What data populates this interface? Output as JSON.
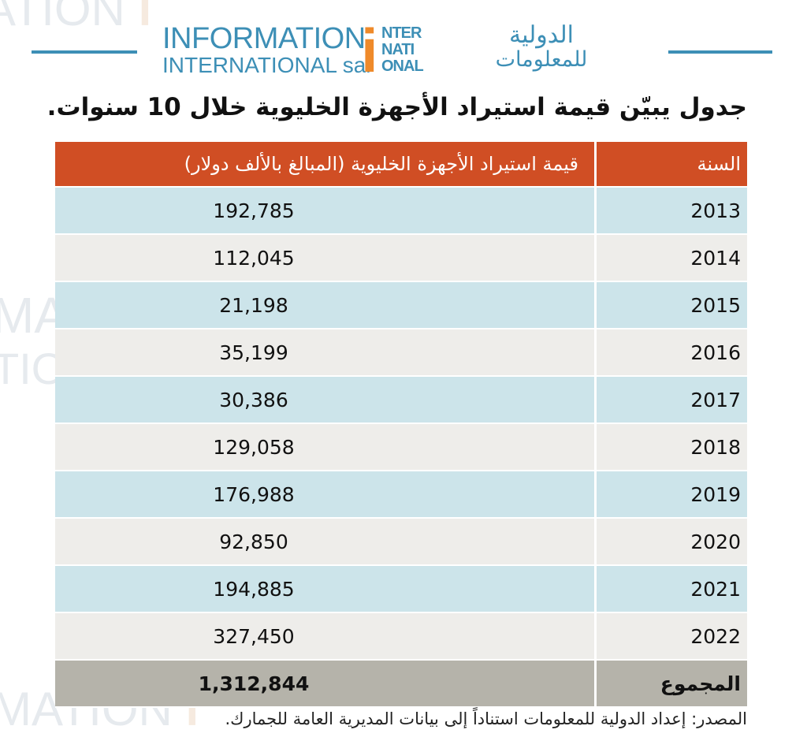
{
  "header": {
    "logo_en_line1": "INFORMATION",
    "logo_en_line2": "INTERNATIONAL sal",
    "logo_mark_letter": "i",
    "logo_mark_lines": [
      "NTER",
      "NATI",
      "ONAL"
    ],
    "logo_ar_line1": "الدولية",
    "logo_ar_line2": "للمعلومات"
  },
  "title": "جدول يبيّن قيمة استيراد الأجهزة الخليوية خلال 10 سنوات.",
  "table": {
    "headers": {
      "year": "السنة",
      "value": "قيمة استيراد الأجهزة الخليوية (المبالغ بالألف دولار)"
    },
    "rows": [
      {
        "year": "2013",
        "value": "192,785"
      },
      {
        "year": "2014",
        "value": "112,045"
      },
      {
        "year": "2015",
        "value": "21,198"
      },
      {
        "year": "2016",
        "value": "35,199"
      },
      {
        "year": "2017",
        "value": "30,386"
      },
      {
        "year": "2018",
        "value": "129,058"
      },
      {
        "year": "2019",
        "value": "176,988"
      },
      {
        "year": "2020",
        "value": "92,850"
      },
      {
        "year": "2021",
        "value": "194,885"
      },
      {
        "year": "2022",
        "value": "327,450"
      }
    ],
    "total": {
      "label": "المجموع",
      "value": "1,312,844"
    }
  },
  "source": "المصدر: إعداد الدولية للمعلومات استناداً إلى بيانات المديرية العامة للجمارك.",
  "colors": {
    "brand_blue": "#3d8fb6",
    "brand_orange": "#ef8a2a",
    "header_row": "#d04e24",
    "row_blue": "#cce4ea",
    "row_grey": "#eeedea",
    "total_row": "#b5b3aa"
  }
}
